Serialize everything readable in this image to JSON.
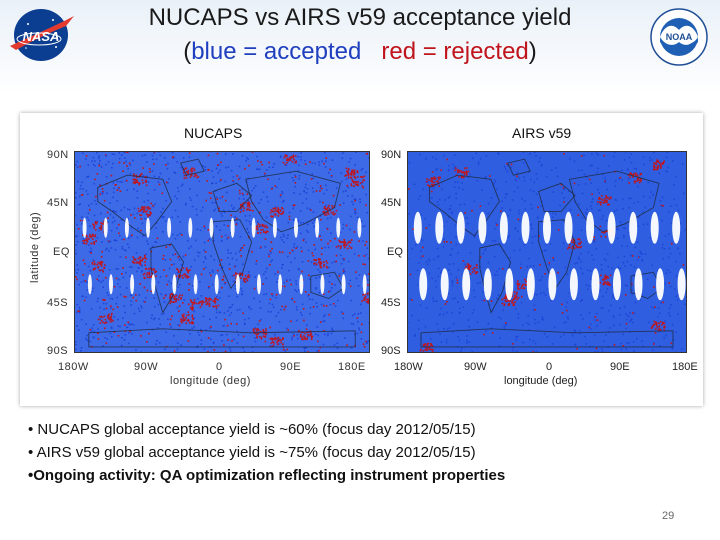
{
  "title": {
    "line1": "NUCAPS vs AIRS v59 acceptance yield",
    "line2_open": "(",
    "line2_blue": "blue = accepted",
    "line2_gap": "   ",
    "line2_red": "red = rejected",
    "line2_close": ")"
  },
  "logos": {
    "left": "NASA",
    "right": "NOAA"
  },
  "figures": {
    "left": {
      "label": "NUCAPS",
      "lat_ticks": [
        "90N",
        "45N",
        "EQ",
        "45S",
        "90S"
      ],
      "lon_ticks": [
        "180W",
        "90W",
        "0",
        "90E",
        "180E"
      ],
      "xlabel": "longitude (deg)",
      "ylabel": "latitude (deg)"
    },
    "right": {
      "label": "AIRS v59",
      "lat_ticks": [
        "90N",
        "45N",
        "EQ",
        "45S",
        "90S"
      ],
      "lon_ticks": [
        "180W",
        "90W",
        "0",
        "90E",
        "180E"
      ],
      "xlabel": "longitude (deg)"
    }
  },
  "colors": {
    "accepted": "#2f5fe0",
    "rejected": "#c0151c"
  },
  "bullets": [
    "• NUCAPS global acceptance yield is ~60% (focus day 2012/05/15)",
    "• AIRS v59 global acceptance yield is ~75% (focus day 2012/05/15)",
    "•Ongoing activity: QA optimization reflecting instrument properties"
  ],
  "page_number": "29"
}
